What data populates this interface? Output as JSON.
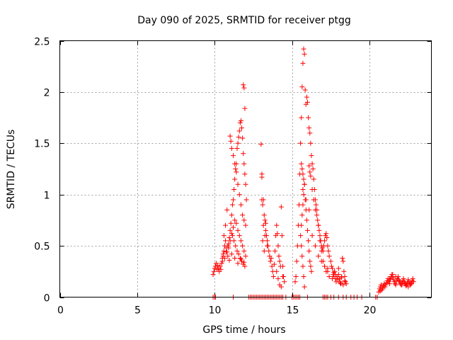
{
  "chart_data": {
    "type": "scatter",
    "title": "Day 090 of 2025, SRMTID for receiver ptgg",
    "xlabel": "GPS time / hours",
    "ylabel": "SRMTID / TECUs",
    "xlim": [
      0,
      24
    ],
    "ylim": [
      0,
      2.5
    ],
    "xticks": [
      0,
      5,
      10,
      15,
      20
    ],
    "xtick_labels": [
      "0",
      "5",
      "10",
      "15",
      "20"
    ],
    "yticks": [
      0,
      0.5,
      1,
      1.5,
      2,
      2.5
    ],
    "ytick_labels": [
      "0",
      "0.5",
      "1",
      "1.5",
      "2",
      "2.5"
    ],
    "grid": true,
    "marker": "+",
    "color": "#ff0000",
    "series": [
      {
        "name": "SRMTID",
        "x": [
          9.9,
          9.95,
          10.0,
          10.05,
          10.1,
          10.15,
          10.2,
          10.25,
          10.3,
          10.35,
          10.4,
          10.45,
          10.5,
          10.55,
          10.6,
          10.65,
          10.7,
          10.75,
          10.8,
          10.85,
          10.9,
          10.95,
          11.0,
          11.05,
          11.1,
          11.15,
          11.2,
          11.25,
          11.3,
          11.35,
          11.4,
          11.45,
          11.5,
          11.55,
          11.6,
          11.65,
          11.7,
          11.75,
          11.8,
          11.85,
          11.9,
          11.95,
          12.0,
          12.05,
          11.0,
          11.05,
          11.1,
          11.2,
          11.3,
          11.4,
          11.5,
          11.6,
          11.7,
          11.8,
          11.9,
          12.0,
          11.15,
          11.25,
          11.35,
          11.45,
          11.55,
          11.65,
          11.75,
          11.85,
          11.95,
          10.6,
          10.7,
          10.8,
          10.9,
          11.0,
          11.1,
          11.2,
          11.3,
          11.4,
          11.5,
          11.6,
          11.7,
          11.8,
          11.9,
          12.0,
          11.85,
          11.9,
          11.95,
          10.5,
          10.55,
          10.65,
          10.75,
          10.85,
          10.95,
          11.1,
          11.3,
          11.5,
          11.7,
          11.9,
          13.0,
          13.05,
          13.1,
          13.15,
          13.2,
          13.25,
          13.3,
          13.35,
          13.4,
          13.45,
          13.5,
          13.55,
          13.6,
          13.65,
          13.7,
          13.75,
          13.8,
          13.85,
          13.9,
          13.95,
          14.0,
          14.05,
          14.1,
          14.15,
          14.2,
          14.25,
          14.3,
          14.35,
          14.4,
          14.45,
          14.5,
          13.05,
          13.1,
          13.2,
          13.3,
          13.4,
          14.0,
          14.1,
          14.2,
          14.3,
          14.4,
          13.05,
          13.15,
          13.25,
          15.2,
          15.25,
          15.3,
          15.35,
          15.4,
          15.45,
          15.5,
          15.55,
          15.6,
          15.65,
          15.7,
          15.75,
          15.8,
          15.85,
          15.9,
          15.95,
          16.0,
          16.05,
          16.1,
          16.15,
          16.2,
          16.25,
          16.3,
          16.35,
          16.4,
          16.45,
          16.5,
          16.55,
          16.6,
          16.65,
          16.7,
          16.75,
          16.8,
          16.85,
          16.9,
          16.95,
          17.0,
          17.05,
          17.1,
          17.15,
          17.2,
          17.25,
          17.3,
          17.35,
          17.4,
          15.6,
          15.65,
          15.7,
          15.75,
          15.8,
          15.85,
          15.9,
          15.95,
          16.0,
          16.05,
          16.1,
          16.15,
          16.2,
          16.25,
          15.55,
          15.6,
          15.65,
          15.7,
          15.75,
          15.8,
          15.6,
          15.65,
          15.7,
          15.75,
          15.8,
          16.1,
          16.15,
          16.2,
          16.3,
          16.4,
          16.5,
          16.6,
          16.7,
          16.8,
          16.9,
          17.0,
          17.1,
          17.2,
          17.3,
          17.4,
          15.7,
          15.9,
          16.1,
          16.3,
          16.5,
          16.7,
          16.9,
          17.1,
          17.3,
          17.5,
          17.55,
          17.6,
          17.65,
          17.7,
          17.75,
          17.8,
          17.85,
          17.9,
          17.95,
          18.0,
          18.05,
          18.1,
          18.15,
          18.2,
          18.25,
          18.3,
          18.35,
          18.4,
          18.45,
          18.5,
          17.6,
          17.8,
          18.0,
          18.2,
          18.4,
          17.7,
          17.9,
          18.1,
          18.3,
          20.6,
          20.65,
          20.7,
          20.75,
          20.8,
          20.85,
          20.9,
          20.95,
          21.0,
          21.05,
          21.1,
          21.15,
          21.2,
          21.25,
          21.3,
          21.35,
          21.4,
          21.45,
          21.5,
          21.55,
          21.6,
          21.65,
          21.7,
          21.75,
          21.8,
          21.85,
          21.9,
          21.95,
          22.0,
          22.05,
          22.1,
          22.15,
          22.2,
          22.25,
          22.3,
          22.35,
          22.4,
          22.45,
          22.5,
          22.55,
          22.6,
          22.65,
          22.7,
          22.75,
          22.8,
          22.85,
          20.7,
          20.9,
          21.1,
          21.3,
          21.5,
          21.7,
          21.9,
          22.1,
          22.3,
          22.5,
          22.7,
          9.9,
          10.0,
          10.05,
          11.2,
          12.2,
          12.3,
          12.4,
          12.5,
          12.6,
          12.7,
          12.8,
          12.9,
          13.0,
          13.1,
          13.2,
          13.3,
          13.4,
          13.5,
          13.6,
          13.7,
          13.8,
          13.9,
          14.0,
          14.1,
          14.2,
          14.3,
          14.4,
          14.6,
          15.0,
          15.1,
          15.2,
          15.3,
          15.4,
          15.5,
          16.0,
          17.0,
          17.1,
          17.2,
          17.3,
          17.5,
          17.7,
          18.0,
          18.3,
          18.5,
          18.8,
          19.0,
          19.2,
          19.5,
          20.4,
          20.5
        ],
        "y": [
          0.22,
          0.25,
          0.28,
          0.3,
          0.33,
          0.27,
          0.31,
          0.28,
          0.25,
          0.3,
          0.27,
          0.33,
          0.38,
          0.42,
          0.45,
          0.5,
          0.55,
          0.48,
          0.44,
          0.4,
          0.52,
          0.58,
          0.65,
          0.72,
          0.8,
          0.9,
          0.95,
          1.05,
          1.15,
          1.25,
          1.3,
          1.45,
          1.5,
          1.56,
          1.62,
          1.7,
          1.72,
          1.65,
          1.55,
          1.4,
          1.3,
          1.2,
          1.1,
          0.95,
          1.57,
          1.52,
          1.45,
          1.38,
          1.3,
          1.22,
          1.1,
          1.0,
          0.9,
          0.8,
          0.75,
          0.7,
          0.6,
          0.55,
          0.5,
          0.45,
          0.42,
          0.38,
          0.35,
          0.32,
          0.3,
          0.6,
          0.7,
          0.85,
          0.48,
          0.55,
          0.62,
          0.68,
          0.75,
          0.72,
          0.65,
          0.6,
          0.55,
          0.5,
          0.45,
          0.4,
          2.07,
          2.04,
          1.84,
          0.35,
          0.4,
          0.38,
          0.44,
          0.5,
          0.36,
          0.42,
          0.38,
          0.33,
          0.37,
          0.34,
          1.49,
          1.2,
          0.9,
          0.95,
          0.8,
          0.75,
          0.72,
          0.6,
          0.55,
          0.5,
          0.45,
          0.4,
          0.35,
          0.38,
          0.3,
          0.25,
          0.2,
          0.32,
          0.45,
          0.6,
          0.7,
          0.62,
          0.5,
          0.4,
          0.35,
          0.3,
          0.88,
          0.6,
          0.3,
          0.2,
          0.15,
          1.17,
          0.55,
          0.45,
          0.65,
          0.5,
          0.25,
          0.18,
          0.12,
          0.1,
          0.2,
          0.95,
          0.7,
          0.6,
          0.15,
          0.2,
          0.35,
          0.5,
          0.7,
          0.9,
          1.2,
          1.5,
          1.75,
          2.05,
          2.28,
          2.42,
          2.37,
          2.02,
          1.88,
          1.95,
          1.9,
          1.75,
          1.65,
          1.6,
          1.5,
          1.38,
          1.3,
          1.25,
          1.15,
          1.05,
          0.95,
          0.9,
          0.85,
          0.75,
          0.7,
          0.65,
          0.6,
          0.55,
          0.5,
          0.48,
          0.45,
          0.5,
          0.55,
          0.6,
          0.62,
          0.58,
          0.5,
          0.45,
          0.4,
          0.7,
          0.8,
          0.9,
          1.0,
          1.1,
          0.95,
          0.85,
          0.75,
          0.65,
          0.55,
          0.45,
          0.35,
          0.3,
          0.25,
          0.6,
          0.5,
          0.4,
          0.3,
          0.2,
          0.1,
          1.3,
          1.25,
          1.2,
          1.15,
          1.1,
          1.28,
          1.22,
          1.18,
          1.05,
          0.95,
          0.85,
          0.8,
          0.7,
          0.55,
          0.45,
          0.35,
          0.3,
          0.25,
          0.28,
          0.2,
          1.05,
          0.95,
          0.85,
          0.6,
          0.5,
          0.4,
          0.35,
          0.3,
          0.25,
          0.35,
          0.3,
          0.28,
          0.22,
          0.2,
          0.25,
          0.18,
          0.15,
          0.2,
          0.17,
          0.22,
          0.18,
          0.15,
          0.13,
          0.2,
          0.38,
          0.35,
          0.25,
          0.2,
          0.15,
          0.13,
          0.18,
          0.22,
          0.28,
          0.19,
          0.16,
          0.24,
          0.2,
          0.14,
          0.12,
          0.05,
          0.08,
          0.1,
          0.12,
          0.07,
          0.09,
          0.11,
          0.13,
          0.1,
          0.12,
          0.14,
          0.16,
          0.18,
          0.15,
          0.13,
          0.17,
          0.2,
          0.22,
          0.19,
          0.17,
          0.15,
          0.13,
          0.12,
          0.16,
          0.18,
          0.2,
          0.17,
          0.15,
          0.13,
          0.12,
          0.14,
          0.16,
          0.18,
          0.15,
          0.13,
          0.11,
          0.12,
          0.14,
          0.17,
          0.15,
          0.13,
          0.12,
          0.14,
          0.16,
          0.18,
          0.15,
          0.06,
          0.1,
          0.14,
          0.18,
          0.22,
          0.2,
          0.16,
          0.12,
          0.14,
          0.1,
          0.13,
          0.0,
          0.0,
          0.0,
          0.0,
          0.0,
          0.0,
          0.0,
          0.0,
          0.0,
          0.0,
          0.0,
          0.0,
          0.0,
          0.0,
          0.0,
          0.0,
          0.0,
          0.0,
          0.0,
          0.0,
          0.0,
          0.0,
          0.0,
          0.0,
          0.0,
          0.0,
          0.0,
          0.0,
          0.0,
          0.0,
          0.0,
          0.0,
          0.0,
          0.0,
          0.0,
          0.0,
          0.0,
          0.0,
          0.0,
          0.0,
          0.0,
          0.0,
          0.0,
          0.0,
          0.0,
          0.0,
          0.0,
          0.0,
          0.0,
          0.0
        ]
      }
    ]
  }
}
